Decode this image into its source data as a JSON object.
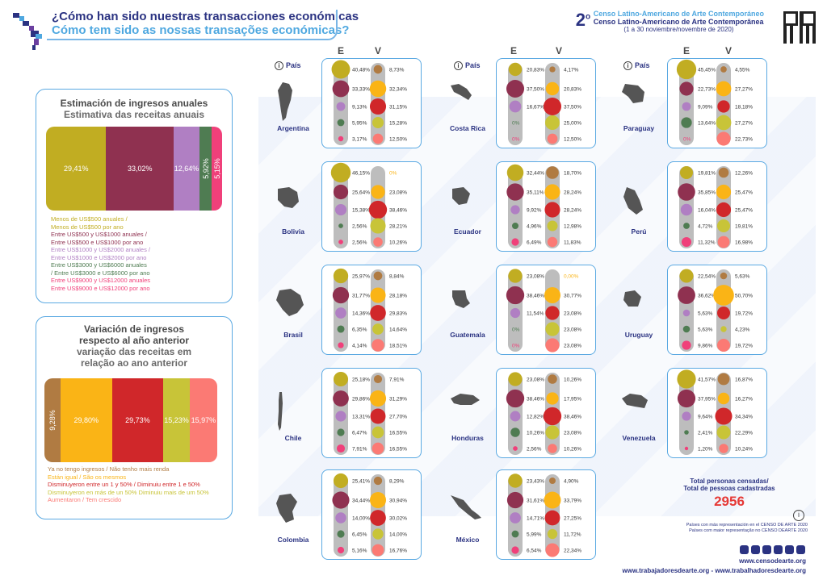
{
  "header": {
    "title_es": "¿Cómo han sido nuestras transacciones económicas",
    "title_pt": "Cómo tem sido as nossas transações económicas?",
    "event_num": "2",
    "event_sup": "o",
    "event_es": "Censo Latino-Americano de Arte Contemporáneo",
    "event_pt": "Censo Latino-Americano de Arte Contemporânea",
    "event_dates": "(1 a 30 noviembre/novembre de 2020)"
  },
  "colors": {
    "navy": "#2b3382",
    "light_blue": "#4fa8e0",
    "olive": "#c1ad22",
    "maroon": "#8f3150",
    "lavender": "#b07fc3",
    "green": "#4f7c52",
    "pink": "#f0407a",
    "brown": "#b07b42",
    "orange": "#fab416",
    "red": "#d0272a",
    "yellowgreen": "#c8c438",
    "salmon": "#fb7a74"
  },
  "income_panel": {
    "title_es": "Estimación de ingresos anuales",
    "title_pt": "Estimativa das receitas anuais",
    "legend": [
      "Menos de US$500 anuales /",
      "Menos de US$500 por ano",
      "Entre US$500 y US$1000 anuales /",
      "Entre US$500 e US$1000 por ano",
      "Entre US$1000 y US$2000 anuales /",
      "Entre US$1000 e US$2000 por ano",
      "Entre US$3000 y US$6000 anuales",
      "/ Entre US$3000 e US$6000 por ano",
      "Entre US$9000 y US$12000 anuales",
      "Entre US$9000 e US$12000 por ano"
    ]
  },
  "variation_panel": {
    "title_es_1": "Variación de ingresos",
    "title_es_2": "respecto al año anterior",
    "title_pt_1": "variação das receitas em",
    "title_pt_2": "relação ao ano anterior",
    "legend": [
      "Ya no tengo ingresos / Não tenho mais renda",
      "Están igual / São os mesmos",
      "Disminuyeron entre un 1 y 50% / Diminuiu entre 1 e 50%",
      "Disminuyeron en más de un  50% Diminuiu mais de um 50%",
      "Aumentaron / Tem crescido"
    ]
  },
  "columns": {
    "e_label": "E",
    "v_label": "V",
    "pais_label": "País"
  },
  "chart_data": [
    {
      "type": "bar",
      "title": "Estimación de ingresos anuales",
      "categories": [
        "Menos de US$500",
        "US$500-1000",
        "US$1000-2000",
        "US$3000-6000",
        "US$9000-12000"
      ],
      "values": [
        29.41,
        33.02,
        12.64,
        5.92,
        5.15
      ],
      "labels": [
        "29,41%",
        "33,02%",
        "12,64%",
        "5,92%",
        "5,15%"
      ]
    },
    {
      "type": "bar",
      "title": "Variación de ingresos respecto al año anterior",
      "categories": [
        "Ya no tengo ingresos",
        "Están igual",
        "Disminuyeron 1-50%",
        "Disminuyeron >50%",
        "Aumentaron"
      ],
      "values": [
        9.28,
        29.8,
        29.73,
        15.23,
        15.97
      ],
      "labels": [
        "9,28%",
        "29,80%",
        "29,73%",
        "15,23%",
        "15,97%"
      ]
    },
    {
      "type": "scatter",
      "title": "Por país",
      "countries": [
        {
          "name": "Argentina",
          "E": [
            "40,48%",
            "33,33%",
            "9,13%",
            "5,95%",
            "3,17%"
          ],
          "V": [
            "8,73%",
            "32,34%",
            "31,15%",
            "15,28%",
            "12,50%"
          ],
          "Ev": [
            40.48,
            33.33,
            9.13,
            5.95,
            3.17
          ],
          "Vv": [
            8.73,
            32.34,
            31.15,
            15.28,
            12.5
          ]
        },
        {
          "name": "Bolivia",
          "E": [
            "46,15%",
            "25,64%",
            "15,38%",
            "2,56%",
            "2,56%"
          ],
          "V": [
            "0%",
            "23,08%",
            "38,46%",
            "28,21%",
            "10,26%"
          ],
          "Ev": [
            46.15,
            25.64,
            15.38,
            2.56,
            2.56
          ],
          "Vv": [
            0,
            23.08,
            38.46,
            28.21,
            10.26
          ]
        },
        {
          "name": "Brasil",
          "E": [
            "25,97%",
            "31,77%",
            "14,36%",
            "6,35%",
            "4,14%"
          ],
          "V": [
            "8,84%",
            "28,18%",
            "29,83%",
            "14,64%",
            "18,51%"
          ],
          "Ev": [
            25.97,
            31.77,
            14.36,
            6.35,
            4.14
          ],
          "Vv": [
            8.84,
            28.18,
            29.83,
            14.64,
            18.51
          ]
        },
        {
          "name": "Chile",
          "E": [
            "25,18%",
            "29,86%",
            "13,31%",
            "6,47%",
            "7,91%"
          ],
          "V": [
            "7,91%",
            "31,29%",
            "27,70%",
            "16,55%",
            "16,55%"
          ],
          "Ev": [
            25.18,
            29.86,
            13.31,
            6.47,
            7.91
          ],
          "Vv": [
            7.91,
            31.29,
            27.7,
            16.55,
            16.55
          ]
        },
        {
          "name": "Colombia",
          "E": [
            "25,41%",
            "34,44%",
            "14,00%",
            "6,45%",
            "5,16%"
          ],
          "V": [
            "8,29%",
            "30,94%",
            "30,02%",
            "14,00%",
            "16,76%"
          ],
          "Ev": [
            25.41,
            34.44,
            14.0,
            6.45,
            5.16
          ],
          "Vv": [
            8.29,
            30.94,
            30.02,
            14.0,
            16.76
          ]
        },
        {
          "name": "Costa Rica",
          "E": [
            "20,83%",
            "37,50%",
            "16,67%",
            "0%",
            "0%"
          ],
          "V": [
            "4,17%",
            "20,83%",
            "37,50%",
            "25,00%",
            "12,50%"
          ],
          "Ev": [
            20.83,
            37.5,
            16.67,
            0,
            0
          ],
          "Vv": [
            4.17,
            20.83,
            37.5,
            25.0,
            12.5
          ]
        },
        {
          "name": "Ecuador",
          "E": [
            "32,44%",
            "35,11%",
            "9,92%",
            "4,96%",
            "6,49%"
          ],
          "V": [
            "18,70%",
            "28,24%",
            "28,24%",
            "12,98%",
            "11,83%"
          ],
          "Ev": [
            32.44,
            35.11,
            9.92,
            4.96,
            6.49
          ],
          "Vv": [
            18.7,
            28.24,
            28.24,
            12.98,
            11.83
          ]
        },
        {
          "name": "Guatemala",
          "E": [
            "23,08%",
            "38,46%",
            "11,54%",
            "0%",
            "0%"
          ],
          "V": [
            "0,00%",
            "30,77%",
            "23,08%",
            "23,08%",
            "23,08%"
          ],
          "Ev": [
            23.08,
            38.46,
            11.54,
            0,
            0
          ],
          "Vv": [
            0,
            30.77,
            23.08,
            23.08,
            23.08
          ]
        },
        {
          "name": "Honduras",
          "E": [
            "23,08%",
            "38,46%",
            "12,82%",
            "10,26%",
            "2,56%"
          ],
          "V": [
            "10,26%",
            "17,95%",
            "38,46%",
            "23,08%",
            "10,26%"
          ],
          "Ev": [
            23.08,
            38.46,
            12.82,
            10.26,
            2.56
          ],
          "Vv": [
            10.26,
            17.95,
            38.46,
            23.08,
            10.26
          ]
        },
        {
          "name": "México",
          "E": [
            "23,43%",
            "31,61%",
            "14,71%",
            "5,99%",
            "6,54%"
          ],
          "V": [
            "4,90%",
            "33,79%",
            "27,25%",
            "11,72%",
            "22,34%"
          ],
          "Ev": [
            23.43,
            31.61,
            14.71,
            5.99,
            6.54
          ],
          "Vv": [
            4.9,
            33.79,
            27.25,
            11.72,
            22.34
          ]
        },
        {
          "name": "Paraguay",
          "E": [
            "45,45%",
            "22,73%",
            "9,09%",
            "13,64%",
            "0%"
          ],
          "V": [
            "4,55%",
            "27,27%",
            "18,18%",
            "27,27%",
            "22,73%"
          ],
          "Ev": [
            45.45,
            22.73,
            9.09,
            13.64,
            0
          ],
          "Vv": [
            4.55,
            27.27,
            18.18,
            27.27,
            22.73
          ]
        },
        {
          "name": "Perú",
          "E": [
            "19,81%",
            "35,85%",
            "16,04%",
            "4,72%",
            "11,32%"
          ],
          "V": [
            "12,26%",
            "25,47%",
            "25,47%",
            "19,81%",
            "16,98%"
          ],
          "Ev": [
            19.81,
            35.85,
            16.04,
            4.72,
            11.32
          ],
          "Vv": [
            12.26,
            25.47,
            25.47,
            19.81,
            16.98
          ]
        },
        {
          "name": "Uruguay",
          "E": [
            "22,54%",
            "36,62%",
            "5,63%",
            "5,63%",
            "9,86%"
          ],
          "V": [
            "5,63%",
            "50,70%",
            "19,72%",
            "4,23%",
            "19,72%"
          ],
          "Ev": [
            22.54,
            36.62,
            5.63,
            5.63,
            9.86
          ],
          "Vv": [
            5.63,
            50.7,
            19.72,
            4.23,
            19.72
          ]
        },
        {
          "name": "Venezuela",
          "E": [
            "41,57%",
            "37,95%",
            "9,64%",
            "2,41%",
            "1,20%"
          ],
          "V": [
            "16,87%",
            "16,27%",
            "34,34%",
            "22,29%",
            "10,24%"
          ],
          "Ev": [
            41.57,
            37.95,
            9.64,
            2.41,
            1.2
          ],
          "Vv": [
            16.87,
            16.27,
            34.34,
            22.29,
            10.24
          ]
        }
      ]
    }
  ],
  "totals": {
    "label_es": "Total personas censadas/",
    "label_pt": "Total de pessoas cadastradas",
    "value": "2956"
  },
  "note": {
    "line1": "Países con más representación en el CENSO DE ARTE 2020",
    "line2": "Países com maior representação no CENSO DEARTE 2020"
  },
  "footer": {
    "web1": "www.censodearte.org",
    "web2": "www.trabajadoresdearte.org - www.trabalhadoresdearte.org"
  }
}
